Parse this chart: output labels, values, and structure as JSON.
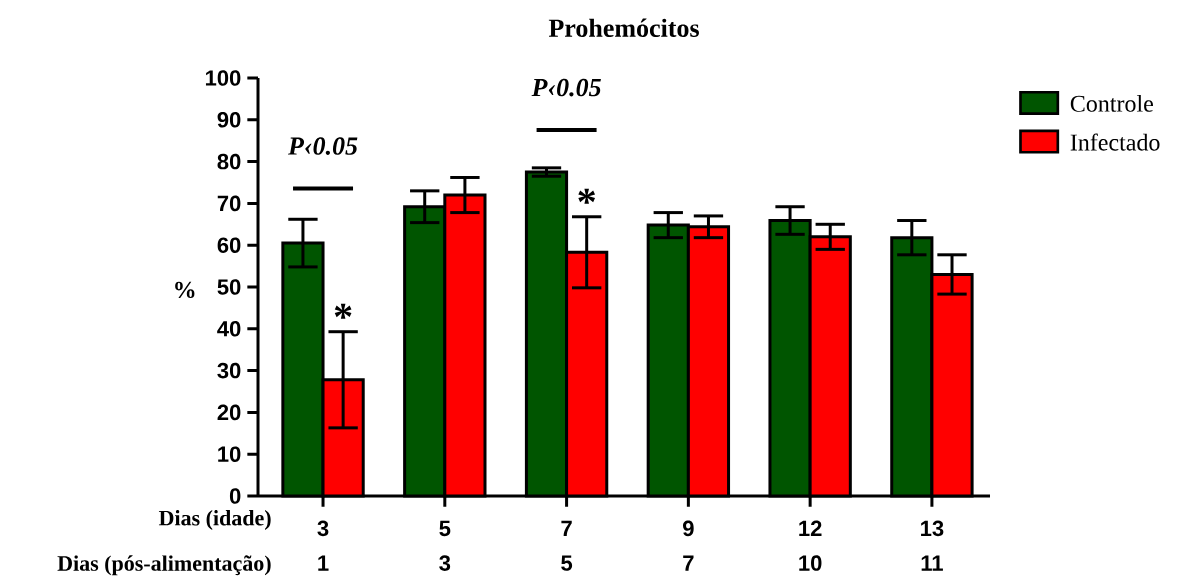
{
  "chart_data": {
    "type": "bar",
    "title": "Prohemócitos",
    "ylabel": "%",
    "xlabel": "Dias (idade)",
    "categories": [
      "3",
      "5",
      "7",
      "9",
      "12",
      "13"
    ],
    "series": [
      {
        "name": "Controle",
        "color": "#005500",
        "values": [
          60.5,
          69.2,
          77.5,
          64.8,
          65.9,
          61.8
        ],
        "errors": [
          5.7,
          3.8,
          1.0,
          3.0,
          3.3,
          4.1
        ]
      },
      {
        "name": "Infectado",
        "color": "#ff0000",
        "values": [
          27.8,
          72.0,
          58.3,
          64.4,
          62.0,
          53.0
        ],
        "errors": [
          11.5,
          4.2,
          8.5,
          2.6,
          3.0,
          4.7
        ],
        "value_labels": [
          "*",
          null,
          "*",
          null,
          null,
          null
        ]
      }
    ],
    "ylim": [
      0,
      100
    ],
    "yticks": [
      0,
      10,
      20,
      30,
      40,
      50,
      60,
      70,
      80,
      90,
      100
    ],
    "legend": "top right",
    "annotations": [
      "P‹0.05",
      "P‹0.05",
      "Dias (pós-alimentação)",
      "1",
      "3",
      "5",
      "7",
      "10",
      "11"
    ]
  }
}
